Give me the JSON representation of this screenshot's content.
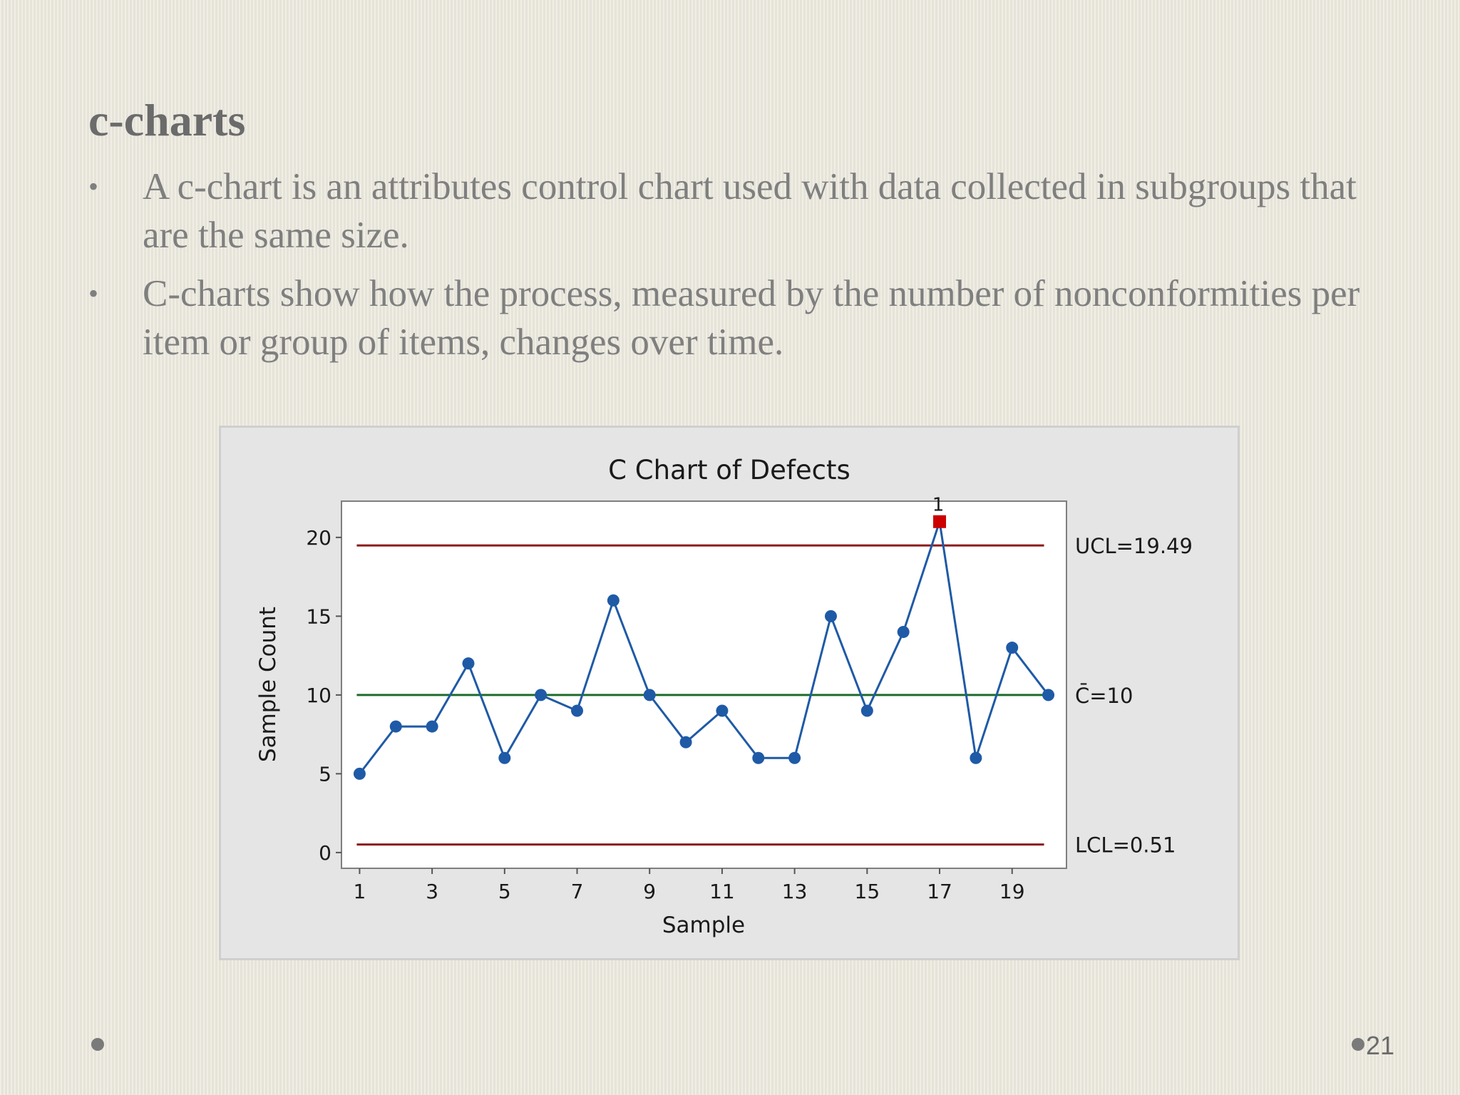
{
  "slide": {
    "title": "c-charts",
    "bullets": [
      "A c-chart is an attributes control chart used with data collected in subgroups that are the same size.",
      "C-charts show how the process, measured by the number of nonconformities per item or group of items, changes over time."
    ],
    "bullet_glyph": "•",
    "page_number": "21"
  },
  "chart_data": {
    "type": "line",
    "title": "C Chart of Defects",
    "xlabel": "Sample",
    "ylabel": "Sample Count",
    "x": [
      1,
      2,
      3,
      4,
      5,
      6,
      7,
      8,
      9,
      10,
      11,
      12,
      13,
      14,
      15,
      16,
      17,
      18,
      19,
      20
    ],
    "values": [
      5,
      8,
      8,
      12,
      6,
      10,
      9,
      16,
      10,
      7,
      9,
      6,
      6,
      15,
      9,
      14,
      21,
      6,
      13,
      10
    ],
    "xlim": [
      0.5,
      20.5
    ],
    "ylim": [
      -1,
      22.3
    ],
    "x_ticks": [
      1,
      3,
      5,
      7,
      9,
      11,
      13,
      15,
      17,
      19
    ],
    "y_ticks": [
      0,
      5,
      10,
      15,
      20
    ],
    "control_lines": [
      {
        "label": "UCL=19.49",
        "value": 19.49,
        "color": "#8b1a1a"
      },
      {
        "label": "C̄=10",
        "value": 10,
        "color": "#1e6b2a"
      },
      {
        "label": "LCL=0.51",
        "value": 0.51,
        "color": "#8b1a1a"
      }
    ],
    "out_of_control": [
      {
        "x": 17,
        "value": 21,
        "flag": "1"
      }
    ],
    "series_color": "#1f5aa6",
    "flag_color": "#cc0000",
    "grid": false,
    "legend": "none"
  }
}
